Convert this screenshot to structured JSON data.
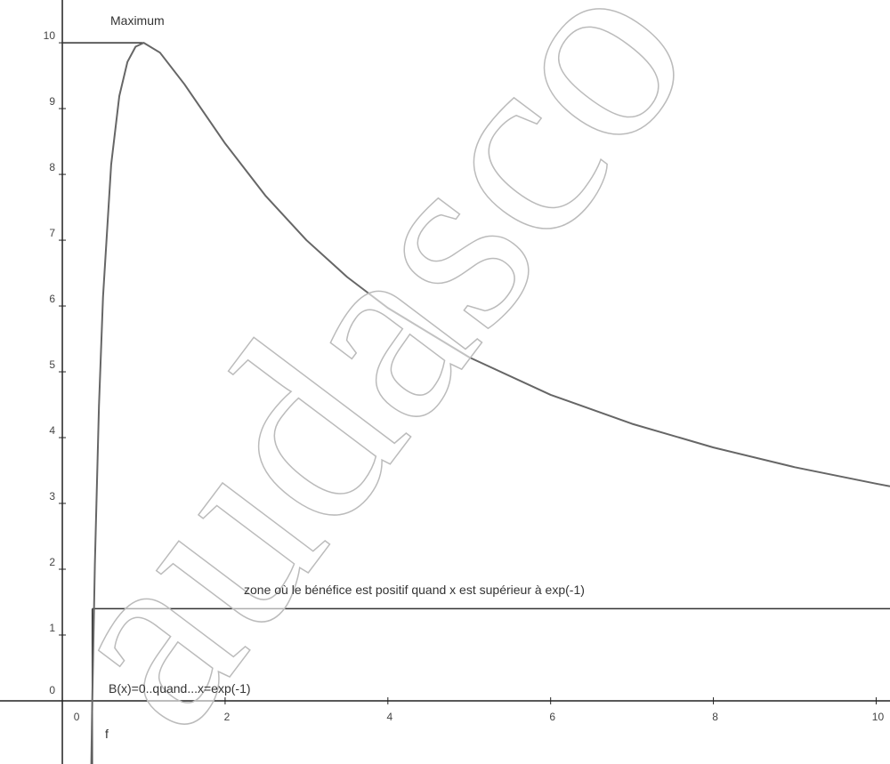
{
  "chart_data": {
    "type": "line",
    "x": [
      0.35,
      0.368,
      0.4,
      0.45,
      0.5,
      0.6,
      0.7,
      0.8,
      0.9,
      1,
      1.2,
      1.5,
      2,
      2.5,
      3,
      3.5,
      4,
      5,
      6,
      7,
      8,
      9,
      10,
      10.17
    ],
    "series": [
      {
        "name": "f",
        "color": "#666666",
        "values": [
          -1.42,
          0,
          2.09,
          4.48,
          6.14,
          8.15,
          9.19,
          9.71,
          9.94,
          10,
          9.85,
          9.37,
          8.47,
          7.67,
          7.0,
          6.44,
          5.97,
          5.22,
          4.65,
          4.21,
          3.85,
          3.55,
          3.3,
          3.26
        ]
      }
    ],
    "xlim": [
      -0.766,
      10.17
    ],
    "ylim": [
      -0.96,
      10.65
    ],
    "xticks": [
      0,
      2,
      4,
      6,
      8,
      10
    ],
    "yticks": [
      0,
      1,
      2,
      3,
      4,
      5,
      6,
      7,
      8,
      9,
      10
    ],
    "maximum_line": {
      "label": "Maximum",
      "y": 10,
      "x": [
        0,
        1
      ]
    },
    "zone_line": {
      "label": "zone où le bénéfice est positif quand x est supérieur à exp(-1)",
      "y": 1.4,
      "x": [
        0.368,
        10.17
      ]
    },
    "zero_line": {
      "label": "B(x)=0..quand...x=exp(-1)",
      "x": 0.368,
      "y": [
        -0.96,
        1.4
      ]
    },
    "watermark": "audasco"
  }
}
